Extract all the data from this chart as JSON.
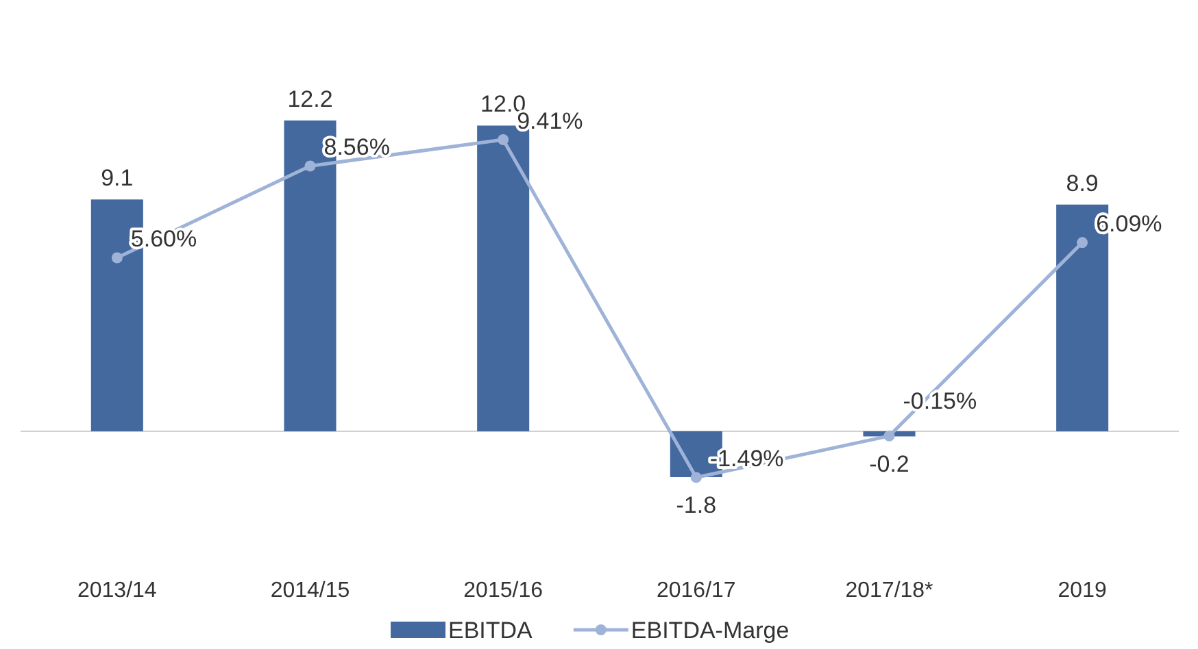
{
  "chart_data": {
    "type": "bar",
    "categories": [
      "2013/14",
      "2014/15",
      "2015/16",
      "2016/17",
      "2017/18*",
      "2019"
    ],
    "series": [
      {
        "name": "EBITDA",
        "color": "#44699f",
        "values": [
          9.1,
          12.2,
          12.0,
          -1.8,
          -0.2,
          8.9
        ],
        "value_labels": [
          "9.1",
          "12.2",
          "12.0",
          "-1.8",
          "-0.2",
          "8.9"
        ]
      },
      {
        "name": "EBITDA-Marge",
        "type": "line",
        "axis": "y2",
        "color": "#9fb3d8",
        "values": [
          5.6,
          8.56,
          9.41,
          -1.49,
          -0.15,
          6.09
        ],
        "value_labels": [
          "5.60%",
          "8.56%",
          "9.41%",
          "-1.49%",
          "-0.15%",
          "6.09%"
        ]
      }
    ],
    "marker": "circle",
    "legend": "bottom"
  }
}
